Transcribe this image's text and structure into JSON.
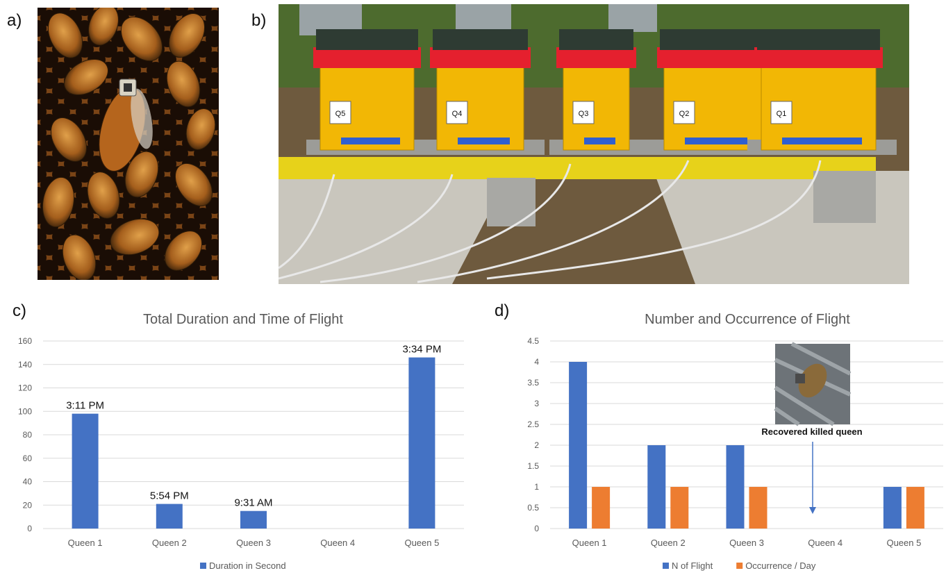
{
  "panels": {
    "a": "a)",
    "b": "b)",
    "c": "c)",
    "d": "d)"
  },
  "hives": {
    "labels": [
      "Q5",
      "Q4",
      "Q3",
      "Q2",
      "Q1"
    ],
    "colors": {
      "body": "#f2b705",
      "roof": "#e5202e",
      "lid": "#2e3b33",
      "stand": "#e7d21a"
    }
  },
  "annotation": {
    "text": "Recovered killed queen"
  },
  "chart_data": [
    {
      "type": "bar",
      "title": "Total Duration and Time of Flight",
      "categories": [
        "Queen 1",
        "Queen 2",
        "Queen 3",
        "Queen 4",
        "Queen 5"
      ],
      "series": [
        {
          "name": "Duration in Second",
          "color": "#4472c4",
          "values": [
            98,
            21,
            15,
            null,
            146
          ]
        }
      ],
      "data_labels": [
        "3:11 PM",
        "5:54 PM",
        "9:31 AM",
        "",
        "3:34 PM"
      ],
      "ylim": [
        0,
        160
      ],
      "yticks": [
        0,
        20,
        40,
        60,
        80,
        100,
        120,
        140,
        160
      ],
      "grid": true,
      "legend": "bottom"
    },
    {
      "type": "bar",
      "title": "Number and Occurrence of Flight",
      "categories": [
        "Queen 1",
        "Queen 2",
        "Queen 3",
        "Queen 4",
        "Queen 5"
      ],
      "series": [
        {
          "name": "N of Flight",
          "color": "#4472c4",
          "values": [
            4,
            2,
            2,
            null,
            1
          ]
        },
        {
          "name": "Occurrence / Day",
          "color": "#ed7d31",
          "values": [
            1,
            1,
            1,
            null,
            1
          ]
        }
      ],
      "ylim": [
        0,
        4.5
      ],
      "yticks": [
        "0",
        "0.5",
        "1",
        "1.5",
        "2",
        "2.5",
        "3",
        "3.5",
        "4",
        "4.5"
      ],
      "grid": true,
      "legend": "bottom"
    }
  ]
}
